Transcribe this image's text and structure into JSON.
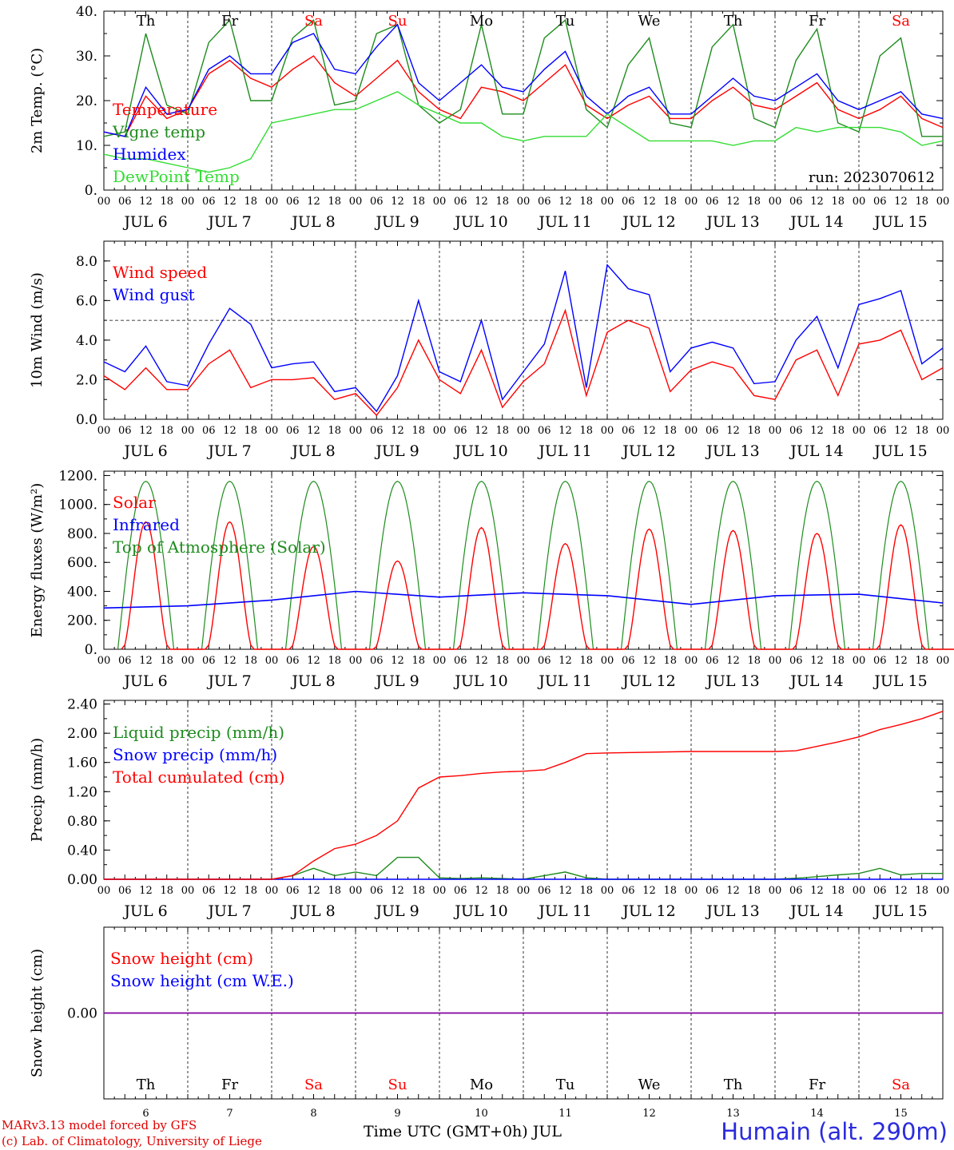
{
  "run_label": "run: 2023070612",
  "credit_line1": "MARv3.13 model forced by GFS",
  "credit_line2": "(c) Lab. of Climatology, University of Liege",
  "x_title": "Time UTC (GMT+0h) JUL",
  "station": "Humain (alt. 290m)",
  "hour_ticks": [
    "00",
    "06",
    "12",
    "18"
  ],
  "days": [
    {
      "weekday": "Th",
      "date": "JUL  6",
      "num": "6",
      "weekend": false
    },
    {
      "weekday": "Fr",
      "date": "JUL  7",
      "num": "7",
      "weekend": false
    },
    {
      "weekday": "Sa",
      "date": "JUL  8",
      "num": "8",
      "weekend": true
    },
    {
      "weekday": "Su",
      "date": "JUL  9",
      "num": "9",
      "weekend": true
    },
    {
      "weekday": "Mo",
      "date": "JUL 10",
      "num": "10",
      "weekend": false
    },
    {
      "weekday": "Tu",
      "date": "JUL 11",
      "num": "11",
      "weekend": false
    },
    {
      "weekday": "We",
      "date": "JUL 12",
      "num": "12",
      "weekend": false
    },
    {
      "weekday": "Th",
      "date": "JUL 13",
      "num": "13",
      "weekend": false
    },
    {
      "weekday": "Fr",
      "date": "JUL 14",
      "num": "14",
      "weekend": false
    },
    {
      "weekday": "Sa",
      "date": "JUL 15",
      "num": "15",
      "weekend": true
    }
  ],
  "colors": {
    "red": "#ff0000",
    "green": "#1e8c1e",
    "blue": "#0000ff",
    "lightgreen": "#33dd33",
    "weekend": "#ff0000",
    "purple": "#8000a0"
  },
  "chart_data": [
    {
      "type": "line",
      "ylabel": "2m Temp. (°C)",
      "ylim": [
        0,
        40
      ],
      "yticks": [
        "0.",
        "10.",
        "20.",
        "30.",
        "40."
      ],
      "ytick_values": [
        0,
        10,
        20,
        30,
        40
      ],
      "show_weekdays": true,
      "show_run": true,
      "x_unit": "hours since JUL 6 00 UTC",
      "series": [
        {
          "name": "Temperature",
          "color": "red",
          "x": [
            0,
            6,
            12,
            18,
            24,
            30,
            36,
            42,
            48,
            54,
            60,
            66,
            72,
            78,
            84,
            90,
            96,
            102,
            108,
            114,
            120,
            126,
            132,
            138,
            144,
            150,
            156,
            162,
            168,
            174,
            180,
            186,
            192,
            198,
            204,
            210,
            216,
            222,
            228,
            234,
            240
          ],
          "y": [
            13,
            12,
            21,
            16,
            18,
            26,
            29,
            25,
            23,
            27,
            30,
            24,
            21,
            25,
            29,
            22,
            18,
            16,
            23,
            22,
            20,
            24,
            28,
            19,
            16,
            19,
            21,
            16,
            16,
            20,
            23,
            19,
            18,
            21,
            24,
            18,
            16,
            18,
            21,
            16,
            14
          ]
        },
        {
          "name": "Vigne temp",
          "color": "green",
          "x": [
            0,
            6,
            12,
            18,
            24,
            30,
            36,
            42,
            48,
            54,
            60,
            66,
            72,
            78,
            84,
            90,
            96,
            102,
            108,
            114,
            120,
            126,
            132,
            138,
            144,
            150,
            156,
            162,
            168,
            174,
            180,
            186,
            192,
            198,
            204,
            210,
            216,
            222,
            228,
            234,
            240
          ],
          "y": [
            12,
            13,
            35,
            19,
            17,
            33,
            38,
            20,
            20,
            34,
            38,
            19,
            20,
            35,
            37,
            19,
            15,
            18,
            37,
            17,
            17,
            34,
            38,
            18,
            14,
            28,
            34,
            15,
            14,
            32,
            37,
            16,
            14,
            29,
            36,
            15,
            13,
            30,
            34,
            12,
            12
          ]
        },
        {
          "name": "Humidex",
          "color": "blue",
          "x": [
            0,
            6,
            12,
            18,
            24,
            30,
            36,
            42,
            48,
            54,
            60,
            66,
            72,
            78,
            84,
            90,
            96,
            102,
            108,
            114,
            120,
            126,
            132,
            138,
            144,
            150,
            156,
            162,
            168,
            174,
            180,
            186,
            192,
            198,
            204,
            210,
            216,
            222,
            228,
            234,
            240
          ],
          "y": [
            13,
            12,
            23,
            17,
            18,
            27,
            30,
            26,
            26,
            33,
            35,
            27,
            26,
            32,
            37,
            24,
            20,
            24,
            28,
            23,
            22,
            27,
            31,
            21,
            17,
            21,
            23,
            17,
            17,
            21,
            25,
            21,
            20,
            23,
            26,
            20,
            18,
            20,
            22,
            17,
            16
          ]
        },
        {
          "name": "DewPoint Temp",
          "color": "lightgreen",
          "x": [
            0,
            6,
            12,
            18,
            24,
            30,
            36,
            42,
            48,
            54,
            60,
            66,
            72,
            78,
            84,
            90,
            96,
            102,
            108,
            114,
            120,
            126,
            132,
            138,
            144,
            150,
            156,
            162,
            168,
            174,
            180,
            186,
            192,
            198,
            204,
            210,
            216,
            222,
            228,
            234,
            240
          ],
          "y": [
            8,
            7,
            7,
            6,
            5,
            4,
            5,
            7,
            15,
            16,
            17,
            18,
            18,
            20,
            22,
            19,
            17,
            15,
            15,
            12,
            11,
            12,
            12,
            12,
            17,
            14,
            11,
            11,
            11,
            11,
            10,
            11,
            11,
            14,
            13,
            14,
            14,
            14,
            13,
            10,
            11
          ]
        }
      ]
    },
    {
      "type": "line",
      "ylabel": "10m Wind (m/s)",
      "ylim": [
        0,
        9
      ],
      "yticks": [
        "0.0",
        "2.0",
        "4.0",
        "6.0",
        "8.0"
      ],
      "ytick_values": [
        0,
        2,
        4,
        6,
        8
      ],
      "reference_line": 5,
      "series": [
        {
          "name": "Wind speed",
          "color": "red",
          "x": [
            0,
            6,
            12,
            18,
            24,
            30,
            36,
            42,
            48,
            54,
            60,
            66,
            72,
            78,
            84,
            90,
            96,
            102,
            108,
            114,
            120,
            126,
            132,
            138,
            144,
            150,
            156,
            162,
            168,
            174,
            180,
            186,
            192,
            198,
            204,
            210,
            216,
            222,
            228,
            234,
            240
          ],
          "y": [
            2.2,
            1.5,
            2.6,
            1.5,
            1.5,
            2.8,
            3.5,
            1.6,
            2.0,
            2.0,
            2.1,
            1.0,
            1.3,
            0.2,
            1.6,
            4.0,
            2.0,
            1.3,
            3.5,
            0.6,
            1.9,
            2.8,
            5.5,
            1.2,
            4.4,
            5.0,
            4.6,
            1.4,
            2.5,
            2.9,
            2.6,
            1.2,
            1.0,
            3.0,
            3.5,
            1.2,
            3.8,
            4.0,
            4.5,
            2.0,
            2.6
          ]
        },
        {
          "name": "Wind gust",
          "color": "blue",
          "x": [
            0,
            6,
            12,
            18,
            24,
            30,
            36,
            42,
            48,
            54,
            60,
            66,
            72,
            78,
            84,
            90,
            96,
            102,
            108,
            114,
            120,
            126,
            132,
            138,
            144,
            150,
            156,
            162,
            168,
            174,
            180,
            186,
            192,
            198,
            204,
            210,
            216,
            222,
            228,
            234,
            240
          ],
          "y": [
            2.9,
            2.4,
            3.7,
            1.9,
            1.7,
            3.8,
            5.6,
            4.8,
            2.6,
            2.8,
            2.9,
            1.4,
            1.6,
            0.4,
            2.2,
            6.0,
            2.4,
            1.9,
            5.0,
            1.0,
            2.4,
            3.8,
            7.5,
            1.6,
            7.8,
            6.6,
            6.3,
            2.4,
            3.6,
            3.9,
            3.6,
            1.8,
            1.9,
            4.0,
            5.2,
            2.6,
            5.8,
            6.1,
            6.5,
            2.8,
            3.6
          ]
        }
      ]
    },
    {
      "type": "line",
      "ylabel": "Energy fluxes (W/m²)",
      "ylim": [
        0,
        1230
      ],
      "yticks": [
        "0.",
        "200.",
        "400.",
        "600.",
        "800.",
        "1000.",
        "1200."
      ],
      "ytick_values": [
        0,
        200,
        400,
        600,
        800,
        1000,
        1200
      ],
      "daily_peaks": {
        "solar": [
          880,
          880,
          710,
          610,
          840,
          730,
          830,
          820,
          800,
          860
        ],
        "toa": 1160
      },
      "series": [
        {
          "name": "Solar",
          "color": "red",
          "x": [],
          "y": []
        },
        {
          "name": "Infrared",
          "color": "blue",
          "x": [
            0,
            24,
            48,
            72,
            96,
            120,
            144,
            168,
            192,
            216,
            240
          ],
          "y": [
            285,
            300,
            340,
            400,
            360,
            390,
            370,
            310,
            370,
            380,
            320
          ]
        },
        {
          "name": "Top of Atmosphere (Solar)",
          "color": "green",
          "x": [],
          "y": []
        }
      ]
    },
    {
      "type": "line",
      "ylabel": "Precip (mm/h)",
      "ylim": [
        0,
        2.45
      ],
      "yticks": [
        "0.00",
        "0.40",
        "0.80",
        "1.20",
        "1.60",
        "2.00",
        "2.40"
      ],
      "ytick_values": [
        0,
        0.4,
        0.8,
        1.2,
        1.6,
        2.0,
        2.4
      ],
      "series": [
        {
          "name": "Liquid precip (mm/h)",
          "color": "green",
          "x": [
            0,
            48,
            54,
            60,
            66,
            72,
            78,
            84,
            90,
            96,
            102,
            108,
            114,
            120,
            126,
            132,
            138,
            144,
            168,
            192,
            200,
            210,
            216,
            222,
            228,
            234,
            240
          ],
          "y": [
            0,
            0,
            0.05,
            0.15,
            0.05,
            0.1,
            0.05,
            0.3,
            0.3,
            0.02,
            0.01,
            0.02,
            0.01,
            0,
            0.05,
            0.1,
            0.02,
            0,
            0,
            0,
            0.02,
            0.06,
            0.08,
            0.15,
            0.06,
            0.08,
            0.08
          ]
        },
        {
          "name": "Snow precip (mm/h)",
          "color": "blue",
          "x": [
            0,
            240
          ],
          "y": [
            0,
            0
          ]
        },
        {
          "name": "Total cumulated (cm)",
          "color": "red",
          "x": [
            0,
            48,
            54,
            60,
            66,
            72,
            78,
            84,
            90,
            96,
            102,
            108,
            114,
            120,
            126,
            132,
            138,
            144,
            168,
            192,
            198,
            204,
            210,
            216,
            222,
            228,
            234,
            240
          ],
          "y": [
            0,
            0,
            0.05,
            0.25,
            0.42,
            0.48,
            0.6,
            0.8,
            1.25,
            1.4,
            1.42,
            1.45,
            1.47,
            1.48,
            1.5,
            1.6,
            1.72,
            1.73,
            1.75,
            1.75,
            1.76,
            1.82,
            1.88,
            1.95,
            2.05,
            2.12,
            2.2,
            2.3
          ]
        }
      ]
    },
    {
      "type": "line",
      "ylabel": "Snow height (cm)",
      "ylim": [
        -1,
        1
      ],
      "yticks": [
        "0.00"
      ],
      "ytick_values": [
        0
      ],
      "show_bottom_weekdays": true,
      "series": [
        {
          "name": "Snow height (cm)",
          "color": "red",
          "x": [
            0,
            240
          ],
          "y": [
            0,
            0
          ]
        },
        {
          "name": "Snow height (cm W.E.)",
          "color": "blue",
          "x": [
            0,
            240
          ],
          "y": [
            0,
            0
          ]
        }
      ]
    }
  ]
}
